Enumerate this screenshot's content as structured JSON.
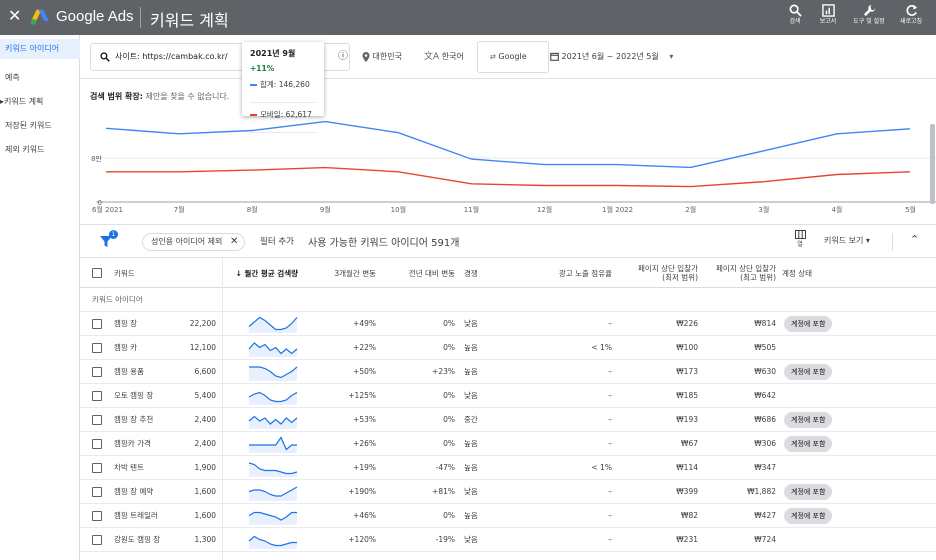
{
  "topbar": {
    "close_glyph": "✕",
    "logo_icon": "google-ads-logo",
    "brand": "Google Ads",
    "title": "키워드 계획",
    "actions": [
      {
        "label": "검색",
        "icon": "search-icon"
      },
      {
        "label": "보고서",
        "icon": "reports-icon"
      },
      {
        "label": "도구 및 설정",
        "icon": "wrench-icon"
      },
      {
        "label": "새로고침",
        "icon": "refresh-icon"
      }
    ]
  },
  "sidebar": {
    "items": [
      {
        "label": "키워드 아이디어",
        "active": true
      },
      {
        "label": "예측",
        "active": false
      },
      {
        "label": "키워드 계획",
        "active": false
      },
      {
        "label": "저장된 키워드",
        "active": false
      },
      {
        "label": "제외 키워드",
        "active": false
      }
    ],
    "plan_arrow": "▸"
  },
  "toolbar": {
    "url_value": "사이트: https://cambak.co.kr/",
    "info_glyph": "ⓘ",
    "location": "대한민국",
    "language": "한국어",
    "network": "Google",
    "date_range": "2021년 6월 ~ 2022년 5월",
    "dropdown_glyph": "▾"
  },
  "expand": {
    "label": "검색 범위 확장:",
    "text": "제안을 찾을 수 없습니다."
  },
  "tooltip": {
    "month": "2021년 9월",
    "change": "+11%",
    "total_label": "합계: 146,260",
    "mobile_label": "모바일: 62,617"
  },
  "chart_data": {
    "type": "line",
    "x": [
      "6월 2021",
      "7월",
      "8월",
      "9월",
      "10월",
      "11월",
      "12월",
      "1월 2022",
      "2월",
      "3월",
      "4월",
      "5월"
    ],
    "y_ticks": [
      "0",
      "8만"
    ],
    "ylim": [
      0,
      160000
    ],
    "series": [
      {
        "name": "합계",
        "color": "#4285f4",
        "values": [
          134000,
          124000,
          130000,
          146260,
          126000,
          78000,
          68000,
          68000,
          63000,
          93000,
          124000,
          133000
        ]
      },
      {
        "name": "모바일",
        "color": "#ea4335",
        "values": [
          55000,
          55000,
          58000,
          62617,
          55000,
          33000,
          30000,
          30000,
          28000,
          37000,
          50000,
          55000
        ]
      }
    ],
    "grid": true
  },
  "filterbar": {
    "chip_label": "성인용 아이디어 제외",
    "chip_close": "✕",
    "add_filter": "필터 추가",
    "summary": "사용 가능한 키워드 아이디어 591개",
    "columns_label": "열",
    "view_label": "키워드 보기",
    "collapse_glyph": "⌃",
    "badge": "1"
  },
  "table": {
    "headers": {
      "keyword": "키워드",
      "avg_searches": "↓ 월간 평균 검색량",
      "three_month": "3개월간 변동",
      "yoy": "전년 대비 변동",
      "competition": "경쟁",
      "impression_share": "광고 노출 점유율",
      "bid_low": "페이지 상단 입찰가\n(최저 범위)",
      "bid_high": "페이지 상단 입찰가\n(최고 범위)",
      "status": "계정 상태"
    },
    "section": "키워드 아이디어",
    "rows": [
      {
        "keyword": "캠핑 장",
        "avg": "22,200",
        "trend": [
          0.7,
          0.4,
          0.1,
          0.3,
          0.6,
          0.9,
          0.9,
          0.8,
          0.5,
          0.1
        ],
        "three": "+49%",
        "yoy": "0%",
        "comp": "낮음",
        "share": "–",
        "low": "₩226",
        "high": "₩814",
        "status": "계정에 포함"
      },
      {
        "keyword": "캠핑 카",
        "avg": "12,100",
        "trend": [
          0.6,
          0.2,
          0.5,
          0.3,
          0.7,
          0.5,
          0.9,
          0.6,
          0.9,
          0.6
        ],
        "three": "+22%",
        "yoy": "0%",
        "comp": "높음",
        "share": "< 1%",
        "low": "₩100",
        "high": "₩505",
        "status": ""
      },
      {
        "keyword": "캠핑 용품",
        "avg": "6,600",
        "trend": [
          0.2,
          0.2,
          0.2,
          0.3,
          0.5,
          0.8,
          0.9,
          0.7,
          0.5,
          0.2
        ],
        "three": "+50%",
        "yoy": "+23%",
        "comp": "높음",
        "share": "–",
        "low": "₩173",
        "high": "₩630",
        "status": "계정에 포함"
      },
      {
        "keyword": "오토 캠핑 장",
        "avg": "5,400",
        "trend": [
          0.6,
          0.4,
          0.3,
          0.5,
          0.8,
          0.9,
          0.9,
          0.8,
          0.5,
          0.3
        ],
        "three": "+125%",
        "yoy": "0%",
        "comp": "낮음",
        "share": "–",
        "low": "₩185",
        "high": "₩642",
        "status": ""
      },
      {
        "keyword": "캠핑 장 추천",
        "avg": "2,400",
        "trend": [
          0.6,
          0.3,
          0.6,
          0.4,
          0.8,
          0.5,
          0.8,
          0.4,
          0.7,
          0.4
        ],
        "three": "+53%",
        "yoy": "0%",
        "comp": "중간",
        "share": "–",
        "low": "₩193",
        "high": "₩686",
        "status": "계정에 포함"
      },
      {
        "keyword": "캠핑카 가격",
        "avg": "2,400",
        "trend": [
          0.6,
          0.6,
          0.6,
          0.6,
          0.6,
          0.6,
          0.1,
          0.9,
          0.6,
          0.6
        ],
        "three": "+26%",
        "yoy": "0%",
        "comp": "높음",
        "share": "–",
        "low": "₩67",
        "high": "₩306",
        "status": "계정에 포함"
      },
      {
        "keyword": "차박 텐트",
        "avg": "1,900",
        "trend": [
          0.2,
          0.3,
          0.6,
          0.7,
          0.7,
          0.7,
          0.8,
          0.9,
          0.9,
          0.8
        ],
        "three": "+19%",
        "yoy": "-47%",
        "comp": "높음",
        "share": "< 1%",
        "low": "₩114",
        "high": "₩347",
        "status": ""
      },
      {
        "keyword": "캠핑 장 예약",
        "avg": "1,600",
        "trend": [
          0.5,
          0.4,
          0.4,
          0.5,
          0.7,
          0.8,
          0.8,
          0.6,
          0.4,
          0.2
        ],
        "three": "+190%",
        "yoy": "+81%",
        "comp": "낮음",
        "share": "–",
        "low": "₩399",
        "high": "₩1,882",
        "status": "계정에 포함"
      },
      {
        "keyword": "캠핑 트레일러",
        "avg": "1,600",
        "trend": [
          0.5,
          0.3,
          0.3,
          0.4,
          0.5,
          0.6,
          0.8,
          0.6,
          0.3,
          0.3
        ],
        "three": "+46%",
        "yoy": "0%",
        "comp": "높음",
        "share": "–",
        "low": "₩82",
        "high": "₩427",
        "status": "계정에 포함"
      },
      {
        "keyword": "강원도 캠핑 장",
        "avg": "1,300",
        "trend": [
          0.6,
          0.3,
          0.5,
          0.6,
          0.8,
          0.9,
          0.9,
          0.8,
          0.7,
          0.7
        ],
        "three": "+120%",
        "yoy": "-19%",
        "comp": "낮음",
        "share": "–",
        "low": "₩231",
        "high": "₩724",
        "status": ""
      }
    ]
  }
}
